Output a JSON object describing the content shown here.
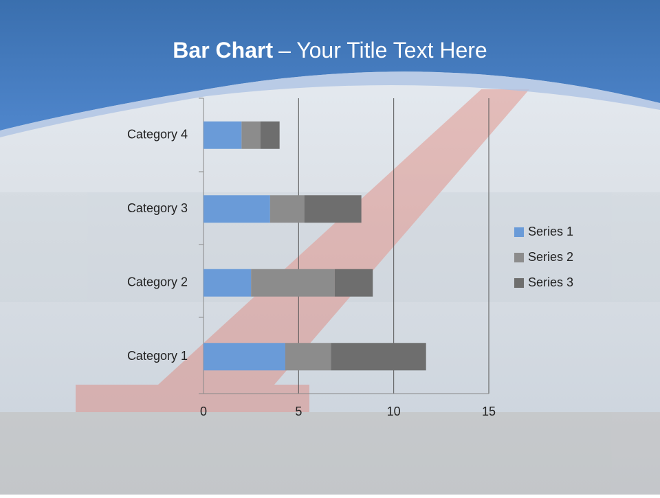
{
  "chart_data": {
    "type": "stacked-bar-horizontal",
    "title_bold": "Bar Chart",
    "title": "– Your Title Text Here",
    "categories": [
      "Category 1",
      "Category 2",
      "Category 3",
      "Category 4"
    ],
    "series": [
      {
        "name": "Series 1",
        "color": "#6a9bd8",
        "values": [
          4.3,
          2.5,
          3.5,
          2
        ]
      },
      {
        "name": "Series 2",
        "color": "#8c8c8c",
        "values": [
          2.4,
          4.4,
          1.8,
          1
        ]
      },
      {
        "name": "Series 3",
        "color": "#6e6e6e",
        "values": [
          5,
          2,
          3,
          1
        ]
      }
    ],
    "xlim": [
      0,
      15
    ],
    "xticks": [
      0,
      5,
      10,
      15
    ],
    "grid": true,
    "legend": "right"
  }
}
